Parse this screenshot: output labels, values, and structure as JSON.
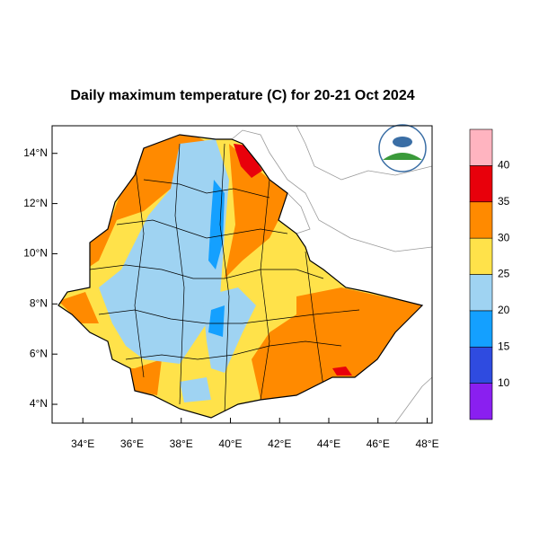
{
  "map": {
    "title": "Daily maximum temperature (C) for 20-21 Oct 2024",
    "xlim": [
      32.75,
      48.2
    ],
    "ylim": [
      3.25,
      15.1
    ],
    "xticks": [
      {
        "value": 34,
        "label": "34°E"
      },
      {
        "value": 36,
        "label": "36°E"
      },
      {
        "value": 38,
        "label": "38°E"
      },
      {
        "value": 40,
        "label": "40°E"
      },
      {
        "value": 42,
        "label": "42°E"
      },
      {
        "value": 44,
        "label": "44°E"
      },
      {
        "value": 46,
        "label": "46°E"
      },
      {
        "value": 48,
        "label": "48°E"
      }
    ],
    "yticks": [
      {
        "value": 4,
        "label": "4°N"
      },
      {
        "value": 6,
        "label": "6°N"
      },
      {
        "value": 8,
        "label": "8°N"
      },
      {
        "value": 10,
        "label": "10°N"
      },
      {
        "value": 12,
        "label": "12°N"
      },
      {
        "value": 14,
        "label": "14°N"
      }
    ],
    "colorbar": {
      "levels": [
        10,
        15,
        20,
        25,
        30,
        35,
        40
      ],
      "colors": [
        "#8a1ff0",
        "#2f4be0",
        "#14a0ff",
        "#9fd3f2",
        "#ffe24a",
        "#ff8a00",
        "#e8000b",
        "#ffb4c0"
      ]
    }
  }
}
